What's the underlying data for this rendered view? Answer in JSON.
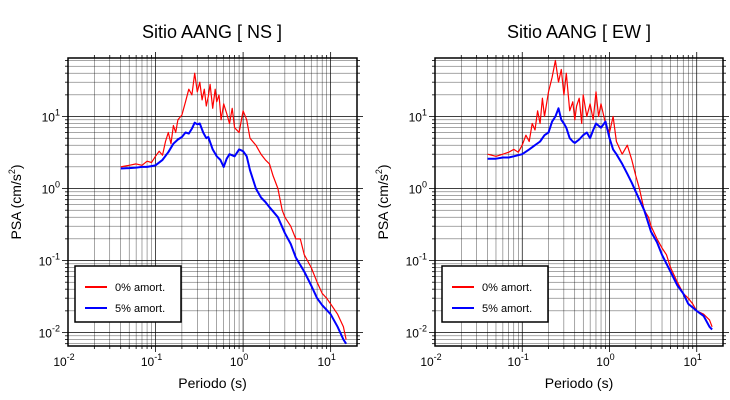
{
  "colors": {
    "undamped": "#ff0000",
    "damped": "#0000ff",
    "grid": "#000000",
    "axis": "#000000"
  },
  "chart_data": [
    {
      "type": "line",
      "title": "Sitio AANG [ NS ]",
      "xlabel": "Periodo (s)",
      "ylabel_main": "PSA (cm/s",
      "ylabel_sup": "2",
      "ylabel_tail": ")",
      "xscale": "log",
      "yscale": "log",
      "xlim": [
        0.01,
        20
      ],
      "ylim": [
        0.0065,
        65
      ],
      "grid": true,
      "legend_position": "bottom-left",
      "xticks": [
        {
          "base": "10",
          "exp": "-2",
          "v": 0.01
        },
        {
          "base": "10",
          "exp": "-1",
          "v": 0.1
        },
        {
          "base": "10",
          "exp": "0",
          "v": 1
        },
        {
          "base": "10",
          "exp": "1",
          "v": 10
        }
      ],
      "yticks": [
        {
          "base": "10",
          "exp": "-2",
          "v": 0.01
        },
        {
          "base": "10",
          "exp": "-1",
          "v": 0.1
        },
        {
          "base": "10",
          "exp": "0",
          "v": 1
        },
        {
          "base": "10",
          "exp": "1",
          "v": 10
        }
      ],
      "series": [
        {
          "name": "0% amort.",
          "color": "#ff0000",
          "x": [
            0.04,
            0.05,
            0.06,
            0.07,
            0.08,
            0.09,
            0.1,
            0.11,
            0.12,
            0.13,
            0.14,
            0.15,
            0.16,
            0.17,
            0.18,
            0.2,
            0.22,
            0.24,
            0.26,
            0.28,
            0.3,
            0.32,
            0.34,
            0.36,
            0.38,
            0.4,
            0.42,
            0.45,
            0.48,
            0.5,
            0.53,
            0.56,
            0.6,
            0.65,
            0.7,
            0.75,
            0.8,
            0.9,
            1.0,
            1.1,
            1.2,
            1.4,
            1.6,
            1.8,
            2.0,
            2.2,
            2.5,
            2.8,
            3.0,
            3.5,
            4.0,
            4.5,
            5.0,
            6.0,
            7.0,
            8.0,
            9.0,
            10,
            12,
            14,
            15
          ],
          "y": [
            2.0,
            2.1,
            2.2,
            2.1,
            2.4,
            2.3,
            2.8,
            3.3,
            2.9,
            4.5,
            6.0,
            4.2,
            7.5,
            6.0,
            9.0,
            10.5,
            16,
            24,
            20,
            40,
            22,
            30,
            17,
            24,
            14,
            19,
            28,
            13,
            24,
            16,
            20,
            9,
            15,
            11,
            8,
            13,
            7,
            6,
            12,
            9,
            5,
            4,
            3,
            2.5,
            2.2,
            1.5,
            1.0,
            0.5,
            0.4,
            0.3,
            0.2,
            0.2,
            0.12,
            0.08,
            0.05,
            0.035,
            0.03,
            0.025,
            0.018,
            0.012,
            0.008
          ]
        },
        {
          "name": "5% amort.",
          "color": "#0000ff",
          "x": [
            0.04,
            0.05,
            0.06,
            0.07,
            0.08,
            0.09,
            0.1,
            0.12,
            0.14,
            0.16,
            0.18,
            0.2,
            0.22,
            0.24,
            0.26,
            0.28,
            0.3,
            0.32,
            0.35,
            0.38,
            0.4,
            0.45,
            0.5,
            0.55,
            0.6,
            0.65,
            0.7,
            0.8,
            0.9,
            1.0,
            1.1,
            1.2,
            1.4,
            1.6,
            1.8,
            2.0,
            2.5,
            3.0,
            3.5,
            4.0,
            5.0,
            6.0,
            7.0,
            8.0,
            10,
            12,
            14,
            15
          ],
          "y": [
            1.9,
            1.92,
            1.95,
            2.0,
            2.0,
            2.05,
            2.1,
            2.5,
            3.2,
            4.2,
            4.8,
            5.2,
            6.0,
            5.8,
            6.8,
            8.2,
            7.8,
            8.0,
            6.0,
            5.0,
            5.2,
            3.5,
            2.8,
            2.5,
            2.0,
            2.6,
            3.0,
            2.8,
            3.5,
            3.3,
            2.8,
            1.8,
            1.0,
            0.75,
            0.65,
            0.55,
            0.4,
            0.24,
            0.17,
            0.11,
            0.07,
            0.045,
            0.03,
            0.024,
            0.018,
            0.012,
            0.008,
            0.007
          ]
        }
      ]
    },
    {
      "type": "line",
      "title": "Sitio AANG [ EW ]",
      "xlabel": "Periodo (s)",
      "ylabel_main": "PSA (cm/s",
      "ylabel_sup": "2",
      "ylabel_tail": ")",
      "xscale": "log",
      "yscale": "log",
      "xlim": [
        0.01,
        20
      ],
      "ylim": [
        0.0065,
        65
      ],
      "grid": true,
      "legend_position": "bottom-left",
      "xticks": [
        {
          "base": "10",
          "exp": "-2",
          "v": 0.01
        },
        {
          "base": "10",
          "exp": "-1",
          "v": 0.1
        },
        {
          "base": "10",
          "exp": "0",
          "v": 1
        },
        {
          "base": "10",
          "exp": "1",
          "v": 10
        }
      ],
      "yticks": [
        {
          "base": "10",
          "exp": "-2",
          "v": 0.01
        },
        {
          "base": "10",
          "exp": "-1",
          "v": 0.1
        },
        {
          "base": "10",
          "exp": "0",
          "v": 1
        },
        {
          "base": "10",
          "exp": "1",
          "v": 10
        }
      ],
      "series": [
        {
          "name": "0% amort.",
          "color": "#ff0000",
          "x": [
            0.04,
            0.05,
            0.06,
            0.07,
            0.08,
            0.09,
            0.1,
            0.11,
            0.12,
            0.13,
            0.14,
            0.15,
            0.16,
            0.17,
            0.18,
            0.2,
            0.22,
            0.24,
            0.26,
            0.28,
            0.3,
            0.32,
            0.35,
            0.38,
            0.4,
            0.42,
            0.45,
            0.48,
            0.5,
            0.55,
            0.6,
            0.65,
            0.7,
            0.75,
            0.8,
            0.9,
            1.0,
            1.1,
            1.2,
            1.4,
            1.6,
            1.8,
            2.0,
            2.2,
            2.5,
            2.8,
            3.0,
            3.5,
            4.0,
            4.5,
            5.0,
            6.0,
            7.0,
            8.0,
            9.0,
            10,
            12,
            14,
            15
          ],
          "y": [
            3.0,
            2.8,
            3.0,
            3.2,
            3.5,
            3.2,
            4.0,
            5.5,
            4.5,
            8.0,
            6.5,
            12,
            8.0,
            18,
            10,
            22,
            35,
            60,
            30,
            45,
            20,
            40,
            12,
            16,
            9.0,
            14,
            18,
            8.0,
            20,
            10,
            15,
            9.0,
            22,
            10,
            15,
            8.0,
            6.0,
            10,
            4.5,
            3.0,
            4.0,
            2.5,
            1.5,
            1.0,
            0.5,
            0.4,
            0.3,
            0.2,
            0.15,
            0.12,
            0.08,
            0.05,
            0.035,
            0.03,
            0.025,
            0.02,
            0.018,
            0.015,
            0.012
          ]
        },
        {
          "name": "5% amort.",
          "color": "#0000ff",
          "x": [
            0.04,
            0.05,
            0.06,
            0.07,
            0.08,
            0.09,
            0.1,
            0.12,
            0.14,
            0.16,
            0.18,
            0.2,
            0.22,
            0.24,
            0.26,
            0.28,
            0.3,
            0.32,
            0.35,
            0.38,
            0.4,
            0.45,
            0.5,
            0.55,
            0.6,
            0.65,
            0.7,
            0.8,
            0.9,
            1.0,
            1.1,
            1.2,
            1.4,
            1.6,
            1.8,
            2.0,
            2.5,
            3.0,
            3.5,
            4.0,
            5.0,
            6.0,
            7.0,
            8.0,
            10,
            12,
            14,
            15
          ],
          "y": [
            2.6,
            2.6,
            2.7,
            2.7,
            2.8,
            2.9,
            3.0,
            3.5,
            4.0,
            4.5,
            5.5,
            6.0,
            8.5,
            10,
            13,
            9.0,
            8.0,
            7.0,
            5.0,
            4.5,
            4.3,
            4.8,
            5.5,
            6.0,
            5.0,
            6.5,
            8.0,
            7.0,
            8.5,
            5.0,
            3.5,
            3.0,
            2.2,
            1.6,
            1.2,
            0.9,
            0.5,
            0.25,
            0.18,
            0.12,
            0.07,
            0.045,
            0.035,
            0.025,
            0.02,
            0.017,
            0.012,
            0.011
          ]
        }
      ]
    }
  ]
}
